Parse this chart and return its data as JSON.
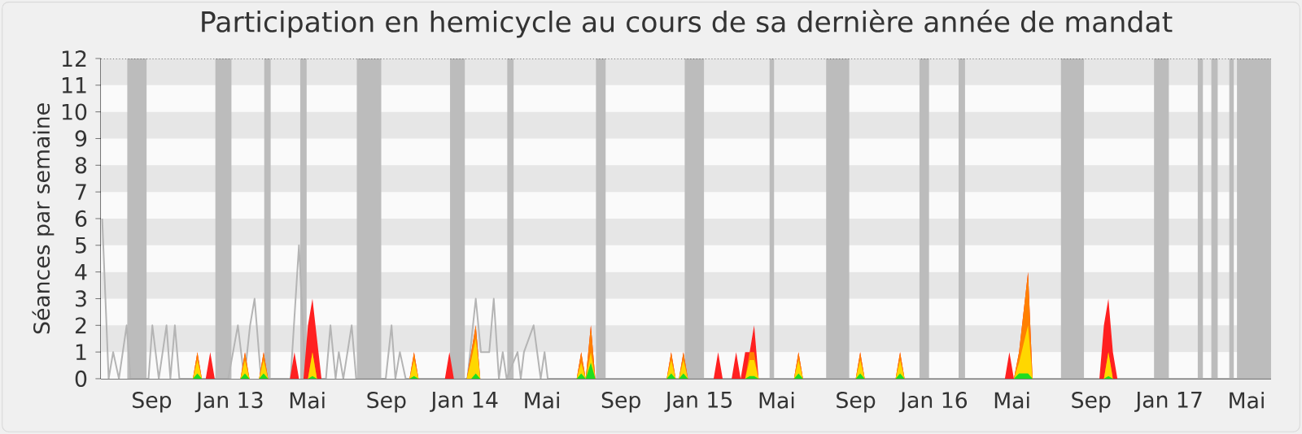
{
  "chart_data": {
    "type": "area",
    "title": "Participation en hemicycle au cours de sa dernière année de mandat",
    "ylabel": "Séances par semaine",
    "xlim": [
      "2012-06-14",
      "2017-06-08"
    ],
    "ylim": [
      0,
      12
    ],
    "xticks": [
      {
        "value": "2012-09-01",
        "label": "Sep"
      },
      {
        "value": "2013-01-01",
        "label": "Jan 13"
      },
      {
        "value": "2013-05-01",
        "label": "Mai"
      },
      {
        "value": "2013-09-01",
        "label": "Sep"
      },
      {
        "value": "2014-01-01",
        "label": "Jan 14"
      },
      {
        "value": "2014-05-01",
        "label": "Mai"
      },
      {
        "value": "2014-09-01",
        "label": "Sep"
      },
      {
        "value": "2015-01-01",
        "label": "Jan 15"
      },
      {
        "value": "2015-05-01",
        "label": "Mai"
      },
      {
        "value": "2015-09-01",
        "label": "Sep"
      },
      {
        "value": "2016-01-01",
        "label": "Jan 16"
      },
      {
        "value": "2016-05-01",
        "label": "Mai"
      },
      {
        "value": "2016-09-01",
        "label": "Sep"
      },
      {
        "value": "2017-01-01",
        "label": "Jan 17"
      },
      {
        "value": "2017-05-01",
        "label": "Mai"
      }
    ],
    "yticks": [
      0,
      1,
      2,
      3,
      4,
      5,
      6,
      7,
      8,
      9,
      10,
      11,
      12
    ],
    "bands": [
      {
        "axis": "y",
        "from": 1,
        "to": 2,
        "color": "#e6e6e6"
      },
      {
        "axis": "y",
        "from": 3,
        "to": 4,
        "color": "#e6e6e6"
      },
      {
        "axis": "y",
        "from": 5,
        "to": 6,
        "color": "#e6e6e6"
      },
      {
        "axis": "y",
        "from": 7,
        "to": 8,
        "color": "#e6e6e6"
      },
      {
        "axis": "y",
        "from": 9,
        "to": 10,
        "color": "#e6e6e6"
      },
      {
        "axis": "y",
        "from": 11,
        "to": 12,
        "color": "#e6e6e6"
      },
      {
        "axis": "x",
        "from": "2012-07-25",
        "to": "2012-08-24",
        "color": "#bcbcbc"
      },
      {
        "axis": "x",
        "from": "2012-12-09",
        "to": "2013-01-03",
        "color": "#bcbcbc"
      },
      {
        "axis": "x",
        "from": "2013-02-23",
        "to": "2013-03-05",
        "color": "#bcbcbc"
      },
      {
        "axis": "x",
        "from": "2013-04-20",
        "to": "2013-04-30",
        "color": "#bcbcbc"
      },
      {
        "axis": "x",
        "from": "2013-07-17",
        "to": "2013-08-24",
        "color": "#bcbcbc"
      },
      {
        "axis": "x",
        "from": "2013-12-09",
        "to": "2014-01-01",
        "color": "#bcbcbc"
      },
      {
        "axis": "x",
        "from": "2014-03-08",
        "to": "2014-03-18",
        "color": "#bcbcbc"
      },
      {
        "axis": "x",
        "from": "2014-07-24",
        "to": "2014-08-08",
        "color": "#bcbcbc"
      },
      {
        "axis": "x",
        "from": "2014-12-09",
        "to": "2015-01-08",
        "color": "#bcbcbc"
      },
      {
        "axis": "x",
        "from": "2015-04-20",
        "to": "2015-04-27",
        "color": "#bcbcbc"
      },
      {
        "axis": "x",
        "from": "2015-07-17",
        "to": "2015-08-22",
        "color": "#bcbcbc"
      },
      {
        "axis": "x",
        "from": "2015-12-09",
        "to": "2015-12-24",
        "color": "#bcbcbc"
      },
      {
        "axis": "x",
        "from": "2016-02-08",
        "to": "2016-02-18",
        "color": "#bcbcbc"
      },
      {
        "axis": "x",
        "from": "2016-07-16",
        "to": "2016-08-21",
        "color": "#bcbcbc"
      },
      {
        "axis": "x",
        "from": "2016-12-08",
        "to": "2016-12-31",
        "color": "#bcbcbc"
      },
      {
        "axis": "x",
        "from": "2017-02-14",
        "to": "2017-02-22",
        "color": "#bcbcbc"
      },
      {
        "axis": "x",
        "from": "2017-03-07",
        "to": "2017-03-17",
        "color": "#bcbcbc"
      },
      {
        "axis": "x",
        "from": "2017-04-04",
        "to": "2017-04-11",
        "color": "#bcbcbc"
      },
      {
        "axis": "x",
        "from": "2017-04-16",
        "to": "2017-06-08",
        "color": "#bcbcbc"
      }
    ],
    "series": [
      {
        "type": "line",
        "color": "#b4b4b4",
        "x": [
          "2012-06-16",
          "2012-06-26",
          "2012-07-03",
          "2012-07-12",
          "2012-07-24",
          "2012-07-30",
          "2012-08-27",
          "2012-09-02",
          "2012-09-12",
          "2012-09-24",
          "2012-09-30",
          "2012-10-07",
          "2012-10-14",
          "2012-12-29",
          "2013-01-13",
          "2013-01-23",
          "2013-02-01",
          "2013-02-08",
          "2013-02-18",
          "2013-04-05",
          "2013-04-18",
          "2013-04-28",
          "2013-05-30",
          "2013-06-06",
          "2013-06-14",
          "2013-06-19",
          "2013-06-26",
          "2013-07-09",
          "2013-07-16",
          "2013-08-31",
          "2013-09-09",
          "2013-09-15",
          "2013-09-22",
          "2013-10-01",
          "2014-01-05",
          "2014-01-18",
          "2014-01-26",
          "2014-02-08",
          "2014-02-15",
          "2014-02-23",
          "2014-03-01",
          "2014-03-07",
          "2014-03-24",
          "2014-03-29",
          "2014-04-03",
          "2014-04-18",
          "2014-04-29",
          "2014-05-05",
          "2014-05-10",
          "2017-06-08"
        ],
        "values": [
          6,
          0,
          1,
          0,
          2,
          0,
          0,
          2,
          0,
          2,
          0,
          2,
          0,
          0,
          2,
          0,
          2,
          3,
          0,
          0,
          5,
          0,
          0,
          2,
          0,
          1,
          0,
          2,
          0,
          0,
          2,
          0,
          1,
          0,
          0,
          3,
          1,
          1,
          3,
          0,
          1,
          0,
          1,
          0,
          1,
          2,
          0,
          1,
          0,
          0
        ]
      },
      {
        "color": "#ff2020",
        "x": [
          "2012-11-04",
          "2012-11-11",
          "2012-11-18",
          "2012-11-24",
          "2012-12-01",
          "2012-12-08",
          "2013-01-17",
          "2013-01-24",
          "2013-01-31",
          "2013-02-15",
          "2013-02-22",
          "2013-03-01",
          "2013-04-04",
          "2013-04-11",
          "2013-04-18",
          "2013-04-25",
          "2013-05-02",
          "2013-05-09",
          "2013-05-16",
          "2013-05-23",
          "2013-10-07",
          "2013-10-14",
          "2013-10-21",
          "2013-12-01",
          "2013-12-08",
          "2013-12-15",
          "2014-01-04",
          "2014-01-11",
          "2014-01-18",
          "2014-01-25",
          "2014-06-24",
          "2014-07-01",
          "2014-07-08",
          "2014-07-16",
          "2014-07-23",
          "2014-11-11",
          "2014-11-18",
          "2014-11-25",
          "2014-11-30",
          "2014-12-07",
          "2014-12-14",
          "2015-01-23",
          "2015-01-30",
          "2015-02-06",
          "2015-02-20",
          "2015-02-27",
          "2015-03-06",
          "2015-03-13",
          "2015-03-20",
          "2015-03-27",
          "2015-04-03",
          "2015-05-28",
          "2015-06-04",
          "2015-06-11",
          "2015-09-01",
          "2015-09-08",
          "2015-09-15",
          "2015-11-02",
          "2015-11-09",
          "2015-11-16",
          "2016-04-20",
          "2016-04-27",
          "2016-05-04",
          "2016-05-12",
          "2016-05-26",
          "2016-06-02",
          "2016-09-14",
          "2016-09-21",
          "2016-09-28",
          "2016-10-05",
          "2016-10-12"
        ],
        "values": [
          0,
          1,
          0,
          0,
          1,
          0,
          0,
          1,
          0,
          0,
          1,
          0,
          0,
          1,
          0,
          0,
          2,
          3,
          1.5,
          0,
          0,
          1,
          0,
          0,
          1,
          0,
          0,
          1,
          2,
          0,
          0,
          1,
          0,
          2,
          0,
          0,
          1,
          0,
          0,
          1,
          0,
          0,
          1,
          0,
          0,
          1,
          0,
          1,
          1,
          2,
          0,
          0,
          1,
          0,
          0,
          1,
          0,
          0,
          1,
          0,
          0,
          1,
          0,
          1,
          4,
          0,
          0,
          2,
          3,
          1,
          0
        ]
      },
      {
        "color": "#ff8000",
        "x": [
          "2012-11-04",
          "2012-11-11",
          "2012-11-18",
          "2013-01-17",
          "2013-01-24",
          "2013-01-31",
          "2013-02-15",
          "2013-02-22",
          "2013-03-01",
          "2013-05-02",
          "2013-05-09",
          "2013-05-16",
          "2013-10-07",
          "2013-10-14",
          "2013-10-21",
          "2014-01-04",
          "2014-01-11",
          "2014-01-18",
          "2014-01-25",
          "2014-06-24",
          "2014-07-01",
          "2014-07-08",
          "2014-07-16",
          "2014-07-23",
          "2014-11-11",
          "2014-11-18",
          "2014-11-25",
          "2014-11-30",
          "2014-12-07",
          "2014-12-14",
          "2015-03-13",
          "2015-03-20",
          "2015-03-27",
          "2015-04-03",
          "2015-05-28",
          "2015-06-04",
          "2015-06-11",
          "2015-09-01",
          "2015-09-08",
          "2015-09-15",
          "2015-11-02",
          "2015-11-09",
          "2015-11-16",
          "2016-05-04",
          "2016-05-12",
          "2016-05-26",
          "2016-06-02",
          "2016-09-21",
          "2016-09-28",
          "2016-10-05"
        ],
        "values": [
          0,
          1,
          0,
          0,
          1,
          0,
          0,
          1,
          0,
          0,
          1,
          0,
          0,
          1,
          0,
          0,
          1,
          2,
          0,
          0,
          1,
          0,
          2,
          0,
          0,
          1,
          0,
          0,
          1,
          0,
          0,
          1,
          1,
          0,
          0,
          1,
          0,
          0,
          1,
          0,
          0,
          1,
          0,
          0,
          1,
          4,
          0,
          0,
          1,
          0
        ]
      },
      {
        "color": "#ffd700",
        "x": [
          "2012-11-04",
          "2012-11-11",
          "2012-11-18",
          "2013-01-17",
          "2013-01-24",
          "2013-01-31",
          "2013-02-15",
          "2013-02-22",
          "2013-03-01",
          "2013-05-02",
          "2013-05-09",
          "2013-05-16",
          "2013-10-07",
          "2013-10-14",
          "2013-10-21",
          "2014-01-04",
          "2014-01-11",
          "2014-01-18",
          "2014-01-25",
          "2014-06-24",
          "2014-07-01",
          "2014-07-08",
          "2014-07-16",
          "2014-07-23",
          "2014-11-11",
          "2014-11-18",
          "2014-11-25",
          "2014-11-30",
          "2014-12-07",
          "2014-12-14",
          "2015-03-13",
          "2015-03-20",
          "2015-03-27",
          "2015-04-03",
          "2015-05-28",
          "2015-06-04",
          "2015-06-11",
          "2015-09-01",
          "2015-09-08",
          "2015-09-15",
          "2015-11-02",
          "2015-11-09",
          "2015-11-16",
          "2016-05-04",
          "2016-05-12",
          "2016-05-26",
          "2016-06-02",
          "2016-09-21",
          "2016-09-28",
          "2016-10-05"
        ],
        "values": [
          0,
          0.7,
          0,
          0,
          0.7,
          0,
          0,
          0.7,
          0,
          0,
          1,
          0,
          0,
          0.7,
          0,
          0,
          0.7,
          1.5,
          0,
          0,
          0.6,
          0,
          1,
          0,
          0,
          0.7,
          0,
          0,
          0.7,
          0,
          0,
          0.7,
          0.7,
          0,
          0,
          0.7,
          0,
          0,
          0.7,
          0,
          0,
          0.7,
          0,
          0,
          0.6,
          2,
          0,
          0,
          1,
          0
        ]
      },
      {
        "color": "#20dd20",
        "x": [
          "2012-11-04",
          "2012-11-11",
          "2012-11-18",
          "2013-01-17",
          "2013-01-24",
          "2013-01-31",
          "2013-02-15",
          "2013-02-22",
          "2013-03-01",
          "2013-05-02",
          "2013-05-09",
          "2013-05-16",
          "2013-10-07",
          "2013-10-14",
          "2013-10-21",
          "2014-01-04",
          "2014-01-11",
          "2014-01-18",
          "2014-01-25",
          "2014-06-24",
          "2014-07-01",
          "2014-07-08",
          "2014-07-16",
          "2014-07-23",
          "2014-11-11",
          "2014-11-18",
          "2014-11-25",
          "2014-11-30",
          "2014-12-07",
          "2014-12-14",
          "2015-03-13",
          "2015-03-20",
          "2015-03-27",
          "2015-04-03",
          "2015-05-28",
          "2015-06-04",
          "2015-06-11",
          "2015-09-01",
          "2015-09-08",
          "2015-09-15",
          "2015-11-02",
          "2015-11-09",
          "2015-11-16",
          "2016-05-04",
          "2016-05-12",
          "2016-05-26",
          "2016-06-02",
          "2016-09-21",
          "2016-09-28",
          "2016-10-05"
        ],
        "values": [
          0,
          0.2,
          0,
          0,
          0.2,
          0,
          0,
          0.2,
          0,
          0,
          0.1,
          0,
          0,
          0.1,
          0,
          0,
          0,
          0.2,
          0,
          0,
          0.2,
          0,
          0.6,
          0,
          0,
          0.2,
          0,
          0,
          0.2,
          0,
          0,
          0.1,
          0.1,
          0,
          0,
          0.2,
          0,
          0,
          0.2,
          0,
          0,
          0.2,
          0,
          0,
          0.2,
          0.2,
          0,
          0,
          0.1,
          0
        ]
      }
    ]
  }
}
